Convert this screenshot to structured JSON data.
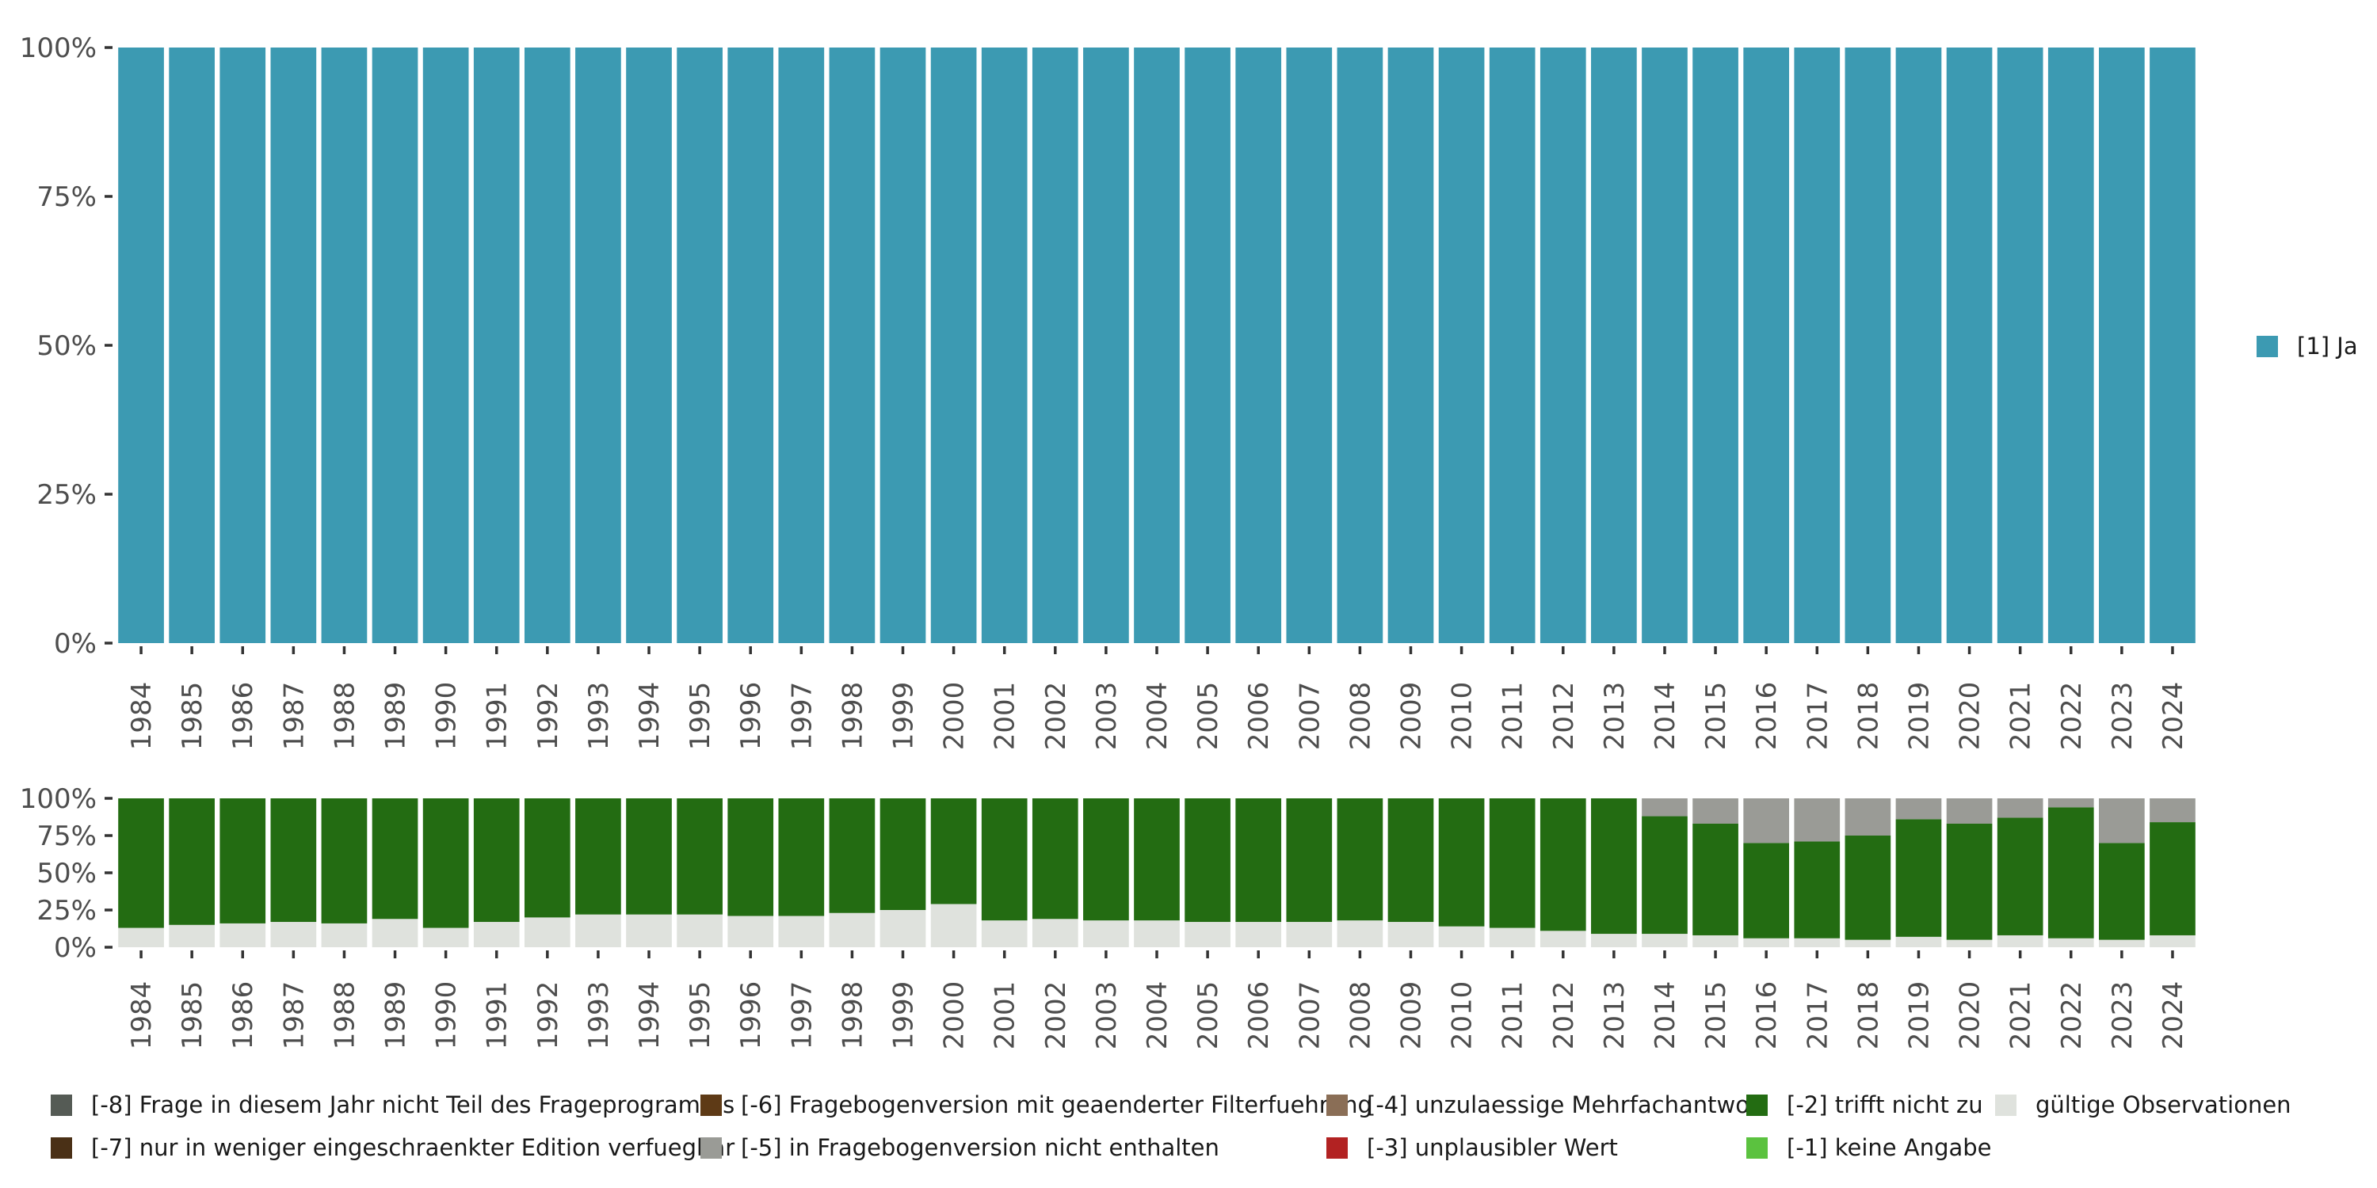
{
  "chart_data": [
    {
      "type": "bar",
      "stacked": true,
      "orientation": "vertical",
      "categories": [
        "1984",
        "1985",
        "1986",
        "1987",
        "1988",
        "1989",
        "1990",
        "1991",
        "1992",
        "1993",
        "1994",
        "1995",
        "1996",
        "1997",
        "1998",
        "1999",
        "2000",
        "2001",
        "2002",
        "2003",
        "2004",
        "2005",
        "2006",
        "2007",
        "2008",
        "2009",
        "2010",
        "2011",
        "2012",
        "2013",
        "2014",
        "2015",
        "2016",
        "2017",
        "2018",
        "2019",
        "2020",
        "2021",
        "2022",
        "2023",
        "2024"
      ],
      "series": [
        {
          "name": "[1] Ja",
          "color": "#3c9ab2",
          "values": [
            100,
            100,
            100,
            100,
            100,
            100,
            100,
            100,
            100,
            100,
            100,
            100,
            100,
            100,
            100,
            100,
            100,
            100,
            100,
            100,
            100,
            100,
            100,
            100,
            100,
            100,
            100,
            100,
            100,
            100,
            100,
            100,
            100,
            100,
            100,
            100,
            100,
            100,
            100,
            100,
            100
          ]
        }
      ],
      "ylim": [
        0,
        100
      ],
      "yticks": [
        "0%",
        "25%",
        "50%",
        "75%",
        "100%"
      ],
      "legend": {
        "position": "right",
        "entries": [
          "[1] Ja"
        ]
      }
    },
    {
      "type": "bar",
      "stacked": true,
      "orientation": "vertical",
      "categories": [
        "1984",
        "1985",
        "1986",
        "1987",
        "1988",
        "1989",
        "1990",
        "1991",
        "1992",
        "1993",
        "1994",
        "1995",
        "1996",
        "1997",
        "1998",
        "1999",
        "2000",
        "2001",
        "2002",
        "2003",
        "2004",
        "2005",
        "2006",
        "2007",
        "2008",
        "2009",
        "2010",
        "2011",
        "2012",
        "2013",
        "2014",
        "2015",
        "2016",
        "2017",
        "2018",
        "2019",
        "2020",
        "2021",
        "2022",
        "2023",
        "2024"
      ],
      "series": [
        {
          "name": "gültige Observationen",
          "color": "#dfe2dd",
          "values": [
            13,
            15,
            16,
            17,
            16,
            19,
            13,
            17,
            20,
            22,
            22,
            22,
            21,
            21,
            23,
            25,
            29,
            18,
            19,
            18,
            18,
            17,
            17,
            17,
            18,
            17,
            14,
            13,
            11,
            9,
            9,
            8,
            6,
            6,
            5,
            7,
            5,
            8,
            6,
            5,
            8
          ]
        },
        {
          "name": "[-2] trifft nicht zu",
          "color": "#236c12",
          "values": [
            87,
            85,
            84,
            83,
            84,
            81,
            87,
            83,
            80,
            78,
            78,
            78,
            79,
            79,
            77,
            75,
            71,
            82,
            81,
            82,
            82,
            83,
            83,
            83,
            82,
            83,
            86,
            87,
            89,
            91,
            79,
            75,
            64,
            65,
            70,
            79,
            78,
            79,
            88,
            65,
            76
          ]
        },
        {
          "name": "[-5] in Fragebogenversion nicht enthalten",
          "color": "#9a9b96",
          "values": [
            0,
            0,
            0,
            0,
            0,
            0,
            0,
            0,
            0,
            0,
            0,
            0,
            0,
            0,
            0,
            0,
            0,
            0,
            0,
            0,
            0,
            0,
            0,
            0,
            0,
            0,
            0,
            0,
            0,
            0,
            12,
            17,
            30,
            29,
            25,
            14,
            17,
            13,
            6,
            30,
            16
          ]
        }
      ],
      "ylim": [
        0,
        100
      ],
      "yticks": [
        "0%",
        "25%",
        "50%",
        "75%",
        "100%"
      ]
    }
  ],
  "bottom_legend": [
    {
      "label": "[-8] Frage in diesem Jahr nicht Teil des Frageprogramms",
      "color": "#555b55"
    },
    {
      "label": "[-7] nur in weniger eingeschraenkter Edition verfuegbar",
      "color": "#4a3016"
    },
    {
      "label": "[-6] Fragebogenversion mit geaenderter Filterfuehrung",
      "color": "#5e3a16"
    },
    {
      "label": "[-5] in Fragebogenversion nicht enthalten",
      "color": "#9a9b96"
    },
    {
      "label": "[-4] unzulaessige Mehrfachantwort",
      "color": "#8a6e56"
    },
    {
      "label": "[-3] unplausibler Wert",
      "color": "#b22222"
    },
    {
      "label": "[-2] trifft nicht zu",
      "color": "#236c12"
    },
    {
      "label": "[-1] keine Angabe",
      "color": "#5bc23f"
    },
    {
      "label": "gültige Observationen",
      "color": "#dfe2dd"
    }
  ]
}
